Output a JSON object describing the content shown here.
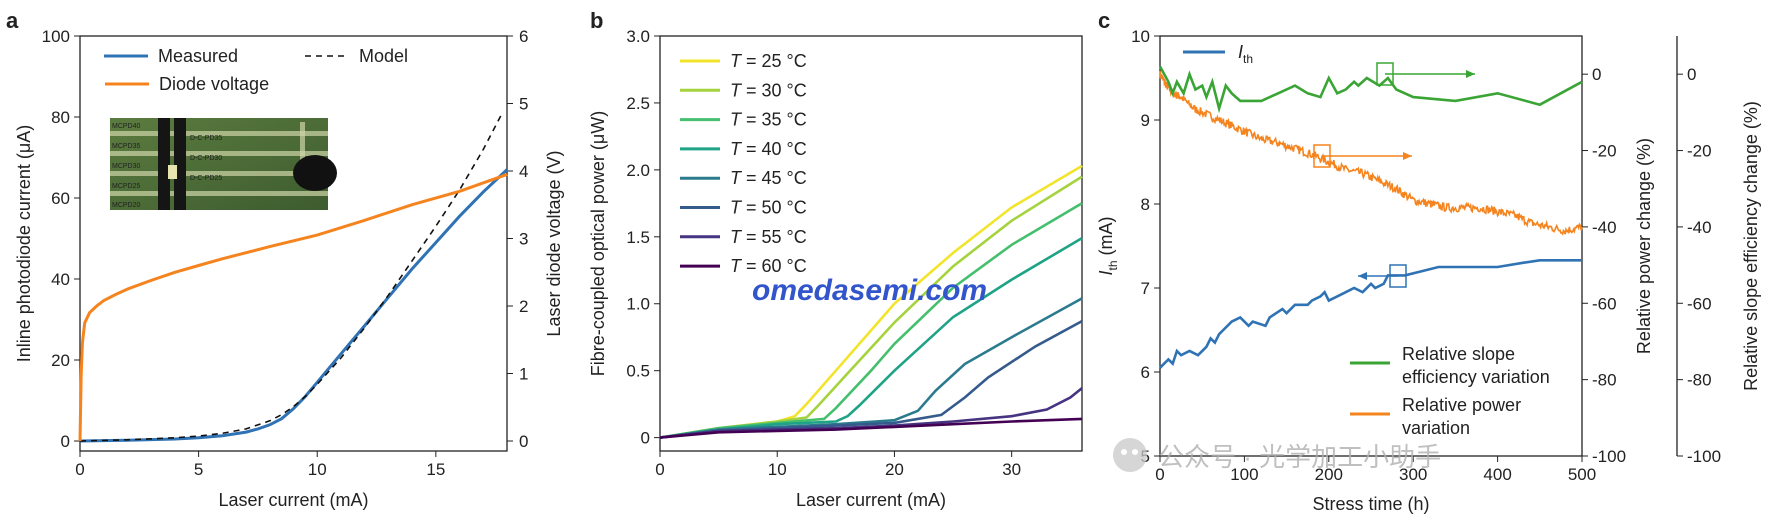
{
  "watermarks": {
    "site": "omedasemi.com",
    "wechat": "公众号 · 光学加工小助手"
  },
  "chart_data": [
    {
      "panel": "a",
      "type": "line",
      "xlabel": "Laser current (mA)",
      "ylabel": "Inline photodiode current (μA)",
      "y2label": "Laser diode voltage (V)",
      "xlim": [
        0,
        18
      ],
      "ylim": [
        0,
        100
      ],
      "y2lim": [
        0,
        6
      ],
      "xticks": [
        0,
        5,
        10,
        15
      ],
      "yticks": [
        0,
        20,
        40,
        60,
        80,
        100
      ],
      "y2ticks": [
        0,
        1,
        2,
        3,
        4,
        5,
        6
      ],
      "legend_position": "top",
      "inset": {
        "description": "microscope photo of chip",
        "labels": [
          "MCPD40",
          "MCPD35",
          "D-C-PD35",
          "MCPD30",
          "D-C-PD30",
          "MCPD25",
          "D-C-PD25",
          "MCPD20"
        ]
      },
      "series": [
        {
          "name": "Measured",
          "color": "#2f73b5",
          "axis": "left",
          "dash": "",
          "x": [
            0,
            2,
            4,
            5,
            6,
            7,
            7.5,
            8,
            8.5,
            9,
            9.5,
            10,
            11,
            12,
            13,
            14,
            15,
            16,
            17,
            18
          ],
          "y": [
            0,
            0.2,
            0.5,
            0.8,
            1.3,
            2.2,
            3,
            4,
            5.5,
            8,
            11,
            14.5,
            21.5,
            28.5,
            35.5,
            42.5,
            49,
            55.5,
            61.5,
            67
          ]
        },
        {
          "name": "Model",
          "color": "#111111",
          "axis": "left",
          "dash": "6,5",
          "x": [
            0,
            2,
            4,
            5,
            6,
            7,
            8,
            8.5,
            9,
            9.5,
            10,
            11,
            12,
            13,
            14,
            15,
            16,
            17,
            17.8
          ],
          "y": [
            0,
            0.3,
            0.8,
            1.2,
            1.9,
            3,
            5,
            6.5,
            8.5,
            11,
            14,
            20.5,
            28,
            36,
            44.5,
            53,
            62,
            72,
            81
          ]
        },
        {
          "name": "Diode voltage",
          "color": "#f5841f",
          "axis": "right",
          "dash": "",
          "x": [
            0,
            0.05,
            0.1,
            0.2,
            0.4,
            0.7,
            1,
            1.5,
            2,
            3,
            4,
            5,
            6,
            8,
            10,
            12,
            14,
            16,
            18
          ],
          "y": [
            0,
            1.0,
            1.45,
            1.75,
            1.9,
            2.0,
            2.08,
            2.17,
            2.25,
            2.38,
            2.5,
            2.6,
            2.7,
            2.88,
            3.05,
            3.27,
            3.5,
            3.7,
            3.95
          ]
        }
      ]
    },
    {
      "panel": "b",
      "type": "line",
      "xlabel": "Laser current (mA)",
      "ylabel": "Fibre-coupled optical power (μW)",
      "xlim": [
        0,
        36
      ],
      "ylim": [
        -0.1,
        3.0
      ],
      "xticks": [
        0,
        10,
        20,
        30
      ],
      "yticks": [
        0,
        0.5,
        1.0,
        1.5,
        2.0,
        2.5,
        3.0
      ],
      "ytick_labels": [
        "0",
        "0.5",
        "1.0",
        "1.5",
        "2.0",
        "2.5",
        "3.0"
      ],
      "legend_position": "top-left",
      "legend_prefix": "T",
      "series": [
        {
          "name": "= 25 °C",
          "color": "#f1e42a",
          "x": [
            0,
            5,
            10,
            11.5,
            12.5,
            15,
            20,
            25,
            30,
            36
          ],
          "y": [
            0,
            0.07,
            0.12,
            0.16,
            0.25,
            0.5,
            1.0,
            1.38,
            1.72,
            2.03
          ]
        },
        {
          "name": "= 30 °C",
          "color": "#a5d33e",
          "x": [
            0,
            5,
            10,
            12.5,
            13.5,
            16,
            20,
            25,
            30,
            36
          ],
          "y": [
            0,
            0.07,
            0.12,
            0.15,
            0.24,
            0.48,
            0.86,
            1.28,
            1.62,
            1.95
          ]
        },
        {
          "name": "= 35 °C",
          "color": "#45bf6d",
          "x": [
            0,
            5,
            10,
            14,
            15,
            18,
            20,
            25,
            30,
            36
          ],
          "y": [
            0,
            0.07,
            0.11,
            0.14,
            0.22,
            0.5,
            0.7,
            1.12,
            1.44,
            1.75
          ]
        },
        {
          "name": "= 40 °C",
          "color": "#1ea386",
          "x": [
            0,
            5,
            10,
            15,
            16,
            17,
            20,
            25,
            30,
            36
          ],
          "y": [
            0,
            0.06,
            0.1,
            0.12,
            0.16,
            0.24,
            0.5,
            0.9,
            1.18,
            1.49
          ]
        },
        {
          "name": "= 45 °C",
          "color": "#2b7a8e",
          "x": [
            0,
            5,
            10,
            15,
            20,
            22,
            23.5,
            26,
            30,
            36
          ],
          "y": [
            0,
            0.06,
            0.08,
            0.1,
            0.13,
            0.2,
            0.35,
            0.55,
            0.75,
            1.04
          ]
        },
        {
          "name": "= 50 °C",
          "color": "#355b8d",
          "x": [
            0,
            5,
            10,
            15,
            20,
            24,
            26,
            28,
            32,
            36
          ],
          "y": [
            0,
            0.05,
            0.07,
            0.09,
            0.11,
            0.17,
            0.3,
            0.45,
            0.68,
            0.87
          ]
        },
        {
          "name": "= 55 °C",
          "color": "#463480",
          "x": [
            0,
            5,
            10,
            15,
            20,
            25,
            30,
            33,
            35,
            36
          ],
          "y": [
            0,
            0.05,
            0.06,
            0.07,
            0.09,
            0.12,
            0.16,
            0.21,
            0.3,
            0.37
          ]
        },
        {
          "name": "= 60 °C",
          "color": "#440154",
          "x": [
            0,
            5,
            10,
            15,
            20,
            25,
            30,
            36
          ],
          "y": [
            0,
            0.04,
            0.05,
            0.06,
            0.08,
            0.1,
            0.12,
            0.14
          ]
        }
      ]
    },
    {
      "panel": "c",
      "type": "line",
      "xlabel": "Stress time (h)",
      "ylabel_main": "I",
      "ylabel_sub": "th",
      "ylabel_unit": " (mA)",
      "y2label": "Relative power change (%)",
      "y3label": "Relative slope efficiency change (%)",
      "xlim": [
        0,
        500
      ],
      "ylim": [
        5,
        10
      ],
      "y2lim": [
        -100,
        10
      ],
      "y3lim": [
        -100,
        10
      ],
      "xticks": [
        0,
        100,
        200,
        300,
        400,
        500
      ],
      "yticks": [
        5,
        6,
        7,
        8,
        9,
        10
      ],
      "y2ticks": [
        0,
        -20,
        -40,
        -60,
        -80,
        -100
      ],
      "y3ticks": [
        0,
        -20,
        -40,
        -60,
        -80,
        -100
      ],
      "legend_top": {
        "main": "I",
        "sub": "th"
      },
      "legend_bottom": [
        "Relative slope",
        "efficiency variation",
        "Relative power",
        "variation"
      ],
      "series": [
        {
          "name": "Ith",
          "color": "#2f73b5",
          "axis": "left",
          "x": [
            0,
            5,
            10,
            15,
            20,
            25,
            35,
            45,
            55,
            60,
            65,
            70,
            75,
            80,
            85,
            95,
            100,
            105,
            110,
            125,
            130,
            145,
            150,
            160,
            175,
            180,
            190,
            195,
            200,
            210,
            220,
            230,
            240,
            250,
            255,
            265,
            270,
            290,
            310,
            330,
            400,
            430,
            450,
            500
          ],
          "y": [
            6.05,
            6.1,
            6.15,
            6.1,
            6.25,
            6.2,
            6.25,
            6.2,
            6.3,
            6.4,
            6.35,
            6.45,
            6.5,
            6.55,
            6.6,
            6.65,
            6.6,
            6.55,
            6.6,
            6.55,
            6.65,
            6.75,
            6.7,
            6.8,
            6.8,
            6.85,
            6.9,
            6.95,
            6.85,
            6.9,
            6.95,
            7.0,
            6.95,
            7.05,
            7.0,
            7.05,
            7.15,
            7.15,
            7.2,
            7.25,
            7.25,
            7.3,
            7.33,
            7.33
          ]
        },
        {
          "name": "Relative power variation",
          "color": "#f5841f",
          "axis": "right",
          "x": [
            0,
            8,
            15,
            25,
            40,
            60,
            80,
            100,
            120,
            140,
            160,
            180,
            200,
            220,
            240,
            260,
            280,
            300,
            320,
            340,
            360,
            380,
            400,
            420,
            440,
            460,
            480,
            500
          ],
          "y": [
            0,
            -3,
            -5,
            -6,
            -9,
            -11,
            -13,
            -15,
            -17,
            -18,
            -19.5,
            -21,
            -23,
            -25,
            -26,
            -28,
            -30,
            -33,
            -34,
            -35,
            -35,
            -35,
            -36,
            -37,
            -39,
            -40,
            -41,
            -40
          ]
        },
        {
          "name": "Relative slope efficiency variation",
          "color": "#3aa535",
          "axis": "right",
          "x": [
            0,
            10,
            15,
            20,
            28,
            35,
            42,
            50,
            55,
            62,
            70,
            78,
            85,
            95,
            100,
            110,
            120,
            140,
            160,
            175,
            190,
            200,
            210,
            220,
            230,
            235,
            245,
            260,
            270,
            280,
            300,
            350,
            400,
            450,
            500
          ],
          "y": [
            2,
            -2,
            -5,
            -2,
            -5,
            0,
            -4,
            -3,
            -6,
            -2,
            -9,
            -3,
            -5,
            -7,
            -7,
            -7,
            -7,
            -5,
            -3,
            -5,
            -6,
            -1,
            -5,
            -4,
            -2,
            -3,
            -1,
            -3,
            -1,
            -4,
            -6,
            -7,
            -5,
            -8,
            -2
          ]
        }
      ]
    }
  ]
}
